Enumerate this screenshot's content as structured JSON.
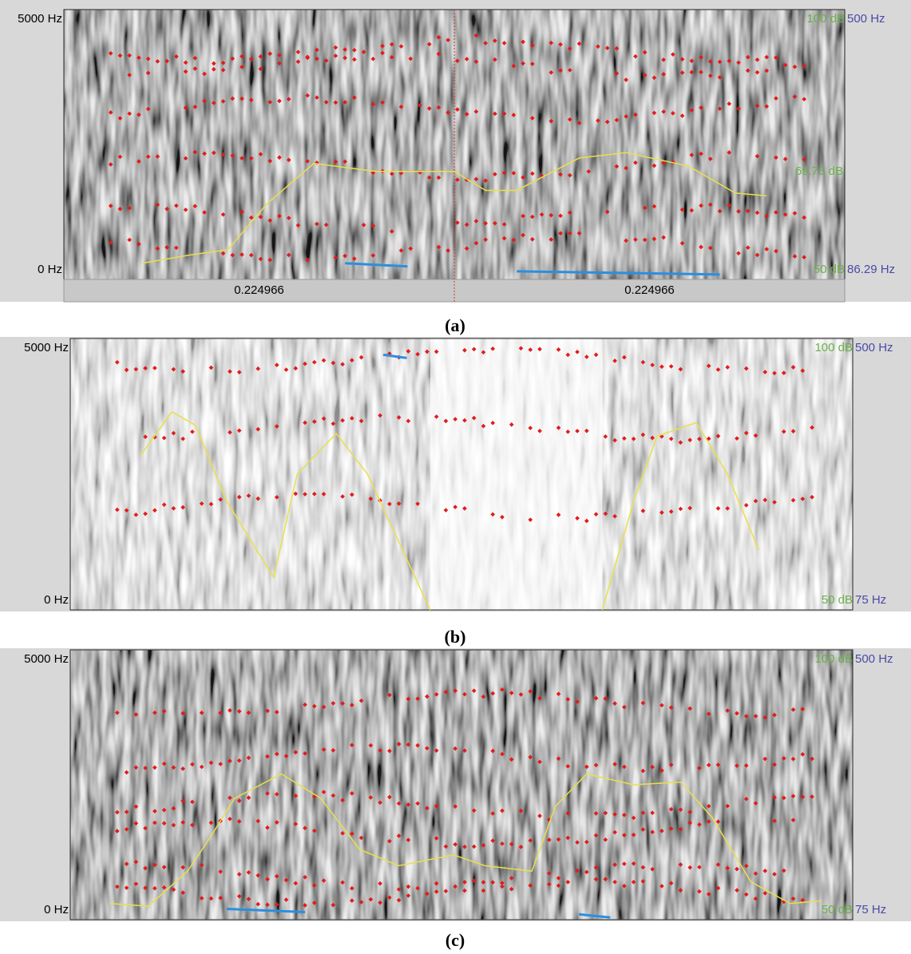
{
  "panels": [
    {
      "caption": "(a)",
      "y_top": "5000 Hz",
      "y_bottom": "0 Hz",
      "right_top_db": "100 dB",
      "right_top_hz": "500 Hz",
      "right_mid_db": "69.73 dB",
      "right_bottom_db": "50 dB",
      "right_bottom_hz": "86.29 Hz",
      "time_labels": [
        "0.224966",
        "0.224966"
      ]
    },
    {
      "caption": "(b)",
      "y_top": "5000 Hz",
      "y_bottom": "0 Hz",
      "right_top_db": "100 dB",
      "right_top_hz": "500 Hz",
      "right_bottom_db": "50 dB",
      "right_bottom_hz": "75 Hz"
    },
    {
      "caption": "(c)",
      "y_top": "5000 Hz",
      "y_bottom": "0 Hz",
      "right_top_db": "100 dB",
      "right_top_hz": "500 Hz",
      "right_bottom_db": "50 dB",
      "right_bottom_hz": "75 Hz"
    }
  ]
}
